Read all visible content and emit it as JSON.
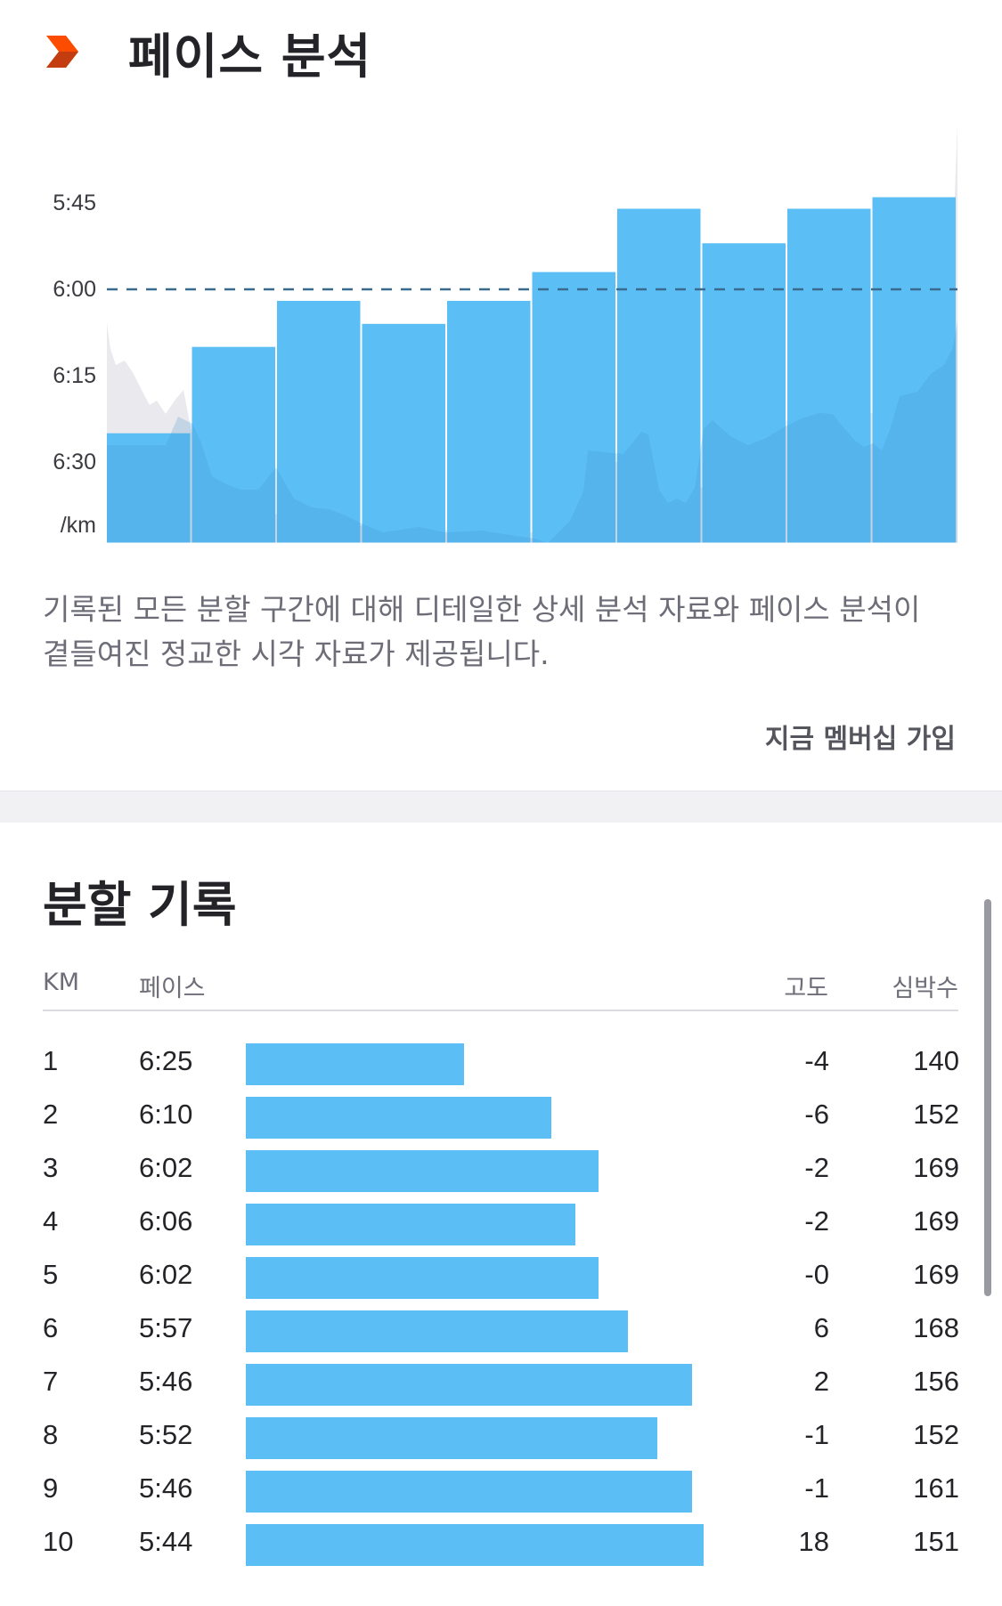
{
  "header": {
    "title": "페이스 분석",
    "brand_color": "#FC4C02",
    "icon": "chevron-brand-icon"
  },
  "chart_data": {
    "type": "bar",
    "ylabel": "/km",
    "y_ticks": [
      "5:45",
      "6:00",
      "6:15",
      "6:30"
    ],
    "y_unit": "/km",
    "y_inverted": true,
    "reference_line": "6:00",
    "categories": [
      "1",
      "2",
      "3",
      "4",
      "5",
      "6",
      "7",
      "8",
      "9",
      "10"
    ],
    "values": [
      "6:25",
      "6:10",
      "6:02",
      "6:06",
      "6:02",
      "5:57",
      "5:46",
      "5:52",
      "5:46",
      "5:44"
    ],
    "bar_color": "#5bbff5",
    "profile_color": "#e9e9ee"
  },
  "description": "기록된 모든 분할 구간에 대해 디테일한 상세 분석 자료와 페이스 분석이 곁들여진 정교한 시각 자료가 제공됩니다.",
  "join_link": "지금 멤버십 가입",
  "splits": {
    "title": "분할 기록",
    "columns": {
      "km": "KM",
      "pace": "페이스",
      "elevation": "고도",
      "heart_rate": "심박수"
    },
    "rows": [
      {
        "km": "1",
        "pace": "6:25",
        "elev": "-4",
        "hr": "140"
      },
      {
        "km": "2",
        "pace": "6:10",
        "elev": "-6",
        "hr": "152"
      },
      {
        "km": "3",
        "pace": "6:02",
        "elev": "-2",
        "hr": "169"
      },
      {
        "km": "4",
        "pace": "6:06",
        "elev": "-2",
        "hr": "169"
      },
      {
        "km": "5",
        "pace": "6:02",
        "elev": "-0",
        "hr": "169"
      },
      {
        "km": "6",
        "pace": "5:57",
        "elev": "6",
        "hr": "168"
      },
      {
        "km": "7",
        "pace": "5:46",
        "elev": "2",
        "hr": "156"
      },
      {
        "km": "8",
        "pace": "5:52",
        "elev": "-1",
        "hr": "152"
      },
      {
        "km": "9",
        "pace": "5:46",
        "elev": "-1",
        "hr": "161"
      },
      {
        "km": "10",
        "pace": "5:44",
        "elev": "18",
        "hr": "151"
      }
    ]
  }
}
